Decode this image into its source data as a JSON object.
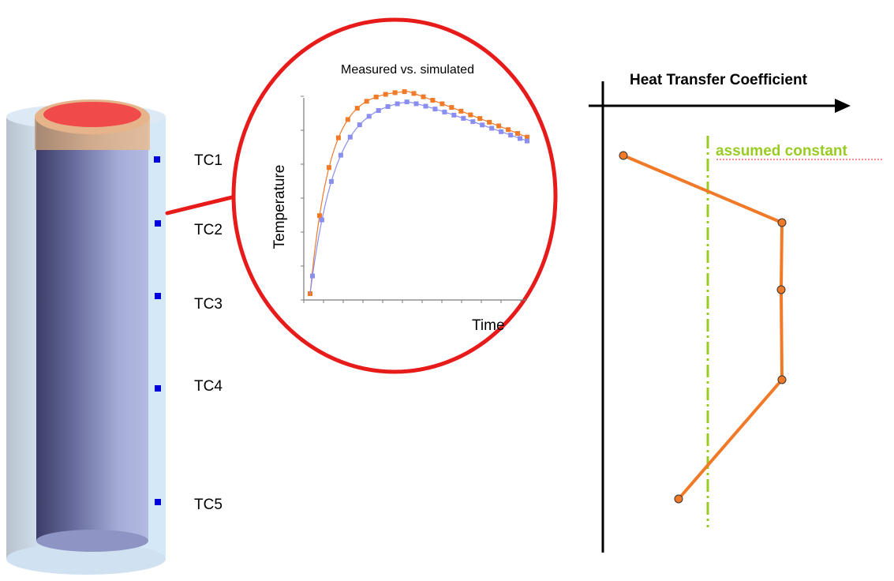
{
  "thermocouples": [
    {
      "label": "TC1"
    },
    {
      "label": "TC2"
    },
    {
      "label": "TC3"
    },
    {
      "label": "TC4"
    },
    {
      "label": "TC5"
    }
  ],
  "inset": {
    "title": "Measured vs. simulated",
    "ylabel": "Temperature",
    "xlabel": "Time",
    "series": [
      {
        "color": "#f07a28"
      },
      {
        "color": "#8a8ef0"
      }
    ]
  },
  "htc_chart": {
    "title": "Heat Transfer Coefficient",
    "constant_label": "assumed constant",
    "profile_color": "#f07a28",
    "constant_color": "#99cc22"
  },
  "colors": {
    "highlight_ring": "#e81b1b",
    "sensor": "#0000dd",
    "casting_top": "#f04a4a"
  }
}
